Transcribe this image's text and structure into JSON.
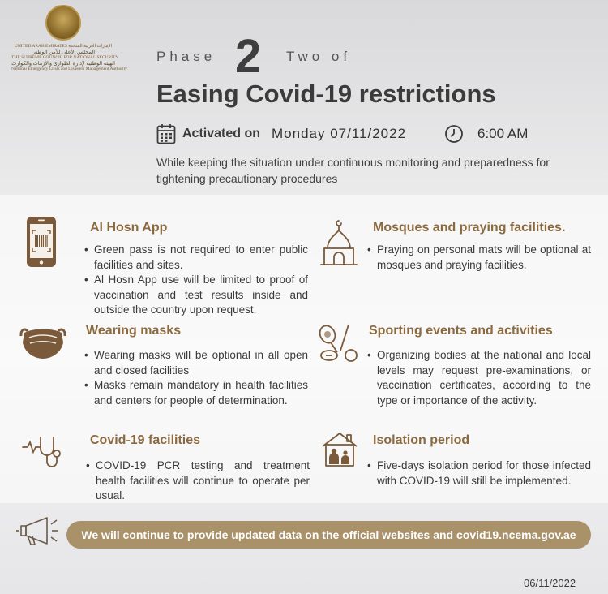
{
  "logo": {
    "line1_en": "UNITED ARAB EMIRATES",
    "line1_ar": "الإمارات العربية المتحدة",
    "line2_ar": "المجلس الأعلى للأمن الوطني",
    "line3_en": "THE SUPREME COUNCIL FOR NATIONAL SECURITY",
    "line4_ar": "الهيئة الوطنية لإدارة الطوارئ والأزمات والكوارث",
    "line5_en": "National Emergency Crisis and Disasters Management Authority"
  },
  "header": {
    "phase_word": "Phase",
    "phase_number": "2",
    "phase_of": "Two of",
    "title": "Easing Covid-19 restrictions",
    "activated_label": "Activated on",
    "activated_date": "Monday 07/11/2022",
    "activated_time": "6:00 AM",
    "intro": "While keeping the situation under continuous monitoring and preparedness for tightening precautionary procedures"
  },
  "sections": {
    "alhosn": {
      "icon": "phone-barcode-icon",
      "title": "Al Hosn App",
      "bullets": [
        "Green pass is not required to enter public facilities and sites.",
        "Al Hosn App use will be limited to proof of vaccination and test results inside and outside the country upon request."
      ]
    },
    "mosques": {
      "icon": "mosque-icon",
      "title": "Mosques and praying facilities.",
      "bullets": [
        "Praying on personal mats will be optional at mosques and praying facilities."
      ]
    },
    "masks": {
      "icon": "face-mask-icon",
      "title": "Wearing masks",
      "bullets": [
        "Wearing masks will be optional in all open and closed facilities",
        "Masks remain mandatory in health facilities and centers for people of determination."
      ]
    },
    "sports": {
      "icon": "sports-equipment-icon",
      "title": "Sporting events and activities",
      "bullets": [
        "Organizing bodies at the national and local levels may request pre-examinations, or vaccination certificates, according to the type or importance of the activity."
      ]
    },
    "facilities": {
      "icon": "stethoscope-icon",
      "title": "Covid-19 facilities",
      "bullets": [
        "COVID-19 PCR testing and treatment health facilities will continue to operate per usual."
      ]
    },
    "isolation": {
      "icon": "family-house-icon",
      "title": "Isolation period",
      "bullets": [
        "Five-days isolation period for those infected with COVID-19 will still be implemented."
      ]
    }
  },
  "footer": {
    "icon": "megaphone-icon",
    "message": "We will continue to provide updated data on the official websites and covid19.ncema.gov.ae",
    "date": "06/11/2022"
  },
  "colors": {
    "accent_brown": "#8b6a3f",
    "icon_brown": "#7a5a3a",
    "footer_bar": "#a9916a"
  }
}
